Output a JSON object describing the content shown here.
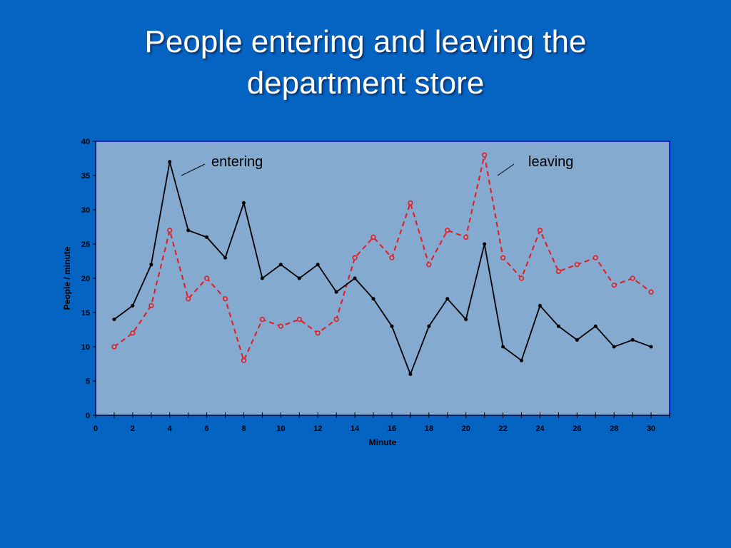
{
  "slide": {
    "title_line1": "People entering and leaving the",
    "title_line2": "department store"
  },
  "colors": {
    "background": "#0563c1",
    "plot_area": "#84aad0",
    "plot_border": "#0000cc",
    "entering": "#000000",
    "leaving": "#e8191c"
  },
  "chart_data": {
    "type": "line",
    "title": "People entering and leaving the department store",
    "xlabel": "Minute",
    "ylabel": "People / minute",
    "xlim": [
      0,
      31
    ],
    "ylim": [
      0,
      40
    ],
    "x_ticks": [
      0,
      2,
      4,
      6,
      8,
      10,
      12,
      14,
      16,
      18,
      20,
      22,
      24,
      26,
      28,
      30
    ],
    "y_ticks": [
      0,
      5,
      10,
      15,
      20,
      25,
      30,
      35,
      40
    ],
    "grid": false,
    "x": [
      1,
      2,
      3,
      4,
      5,
      6,
      7,
      8,
      9,
      10,
      11,
      12,
      13,
      14,
      15,
      16,
      17,
      18,
      19,
      20,
      21,
      22,
      23,
      24,
      25,
      26,
      27,
      28,
      29,
      30
    ],
    "series": [
      {
        "name": "entering",
        "style": "solid",
        "marker": "filled-dot",
        "values": [
          14,
          16,
          22,
          37,
          27,
          26,
          23,
          31,
          20,
          22,
          20,
          22,
          18,
          20,
          17,
          13,
          6,
          13,
          17,
          14,
          25,
          10,
          8,
          16,
          13,
          11,
          13,
          10,
          11,
          10
        ]
      },
      {
        "name": "leaving",
        "style": "dashed",
        "marker": "open-circle",
        "values": [
          10,
          12,
          16,
          27,
          17,
          20,
          17,
          8,
          14,
          13,
          14,
          12,
          14,
          23,
          26,
          23,
          31,
          22,
          27,
          26,
          38,
          23,
          20,
          27,
          21,
          22,
          23,
          19,
          20,
          18
        ]
      }
    ],
    "annotations": [
      {
        "text": "entering",
        "series": "entering"
      },
      {
        "text": "leaving",
        "series": "leaving"
      }
    ]
  }
}
